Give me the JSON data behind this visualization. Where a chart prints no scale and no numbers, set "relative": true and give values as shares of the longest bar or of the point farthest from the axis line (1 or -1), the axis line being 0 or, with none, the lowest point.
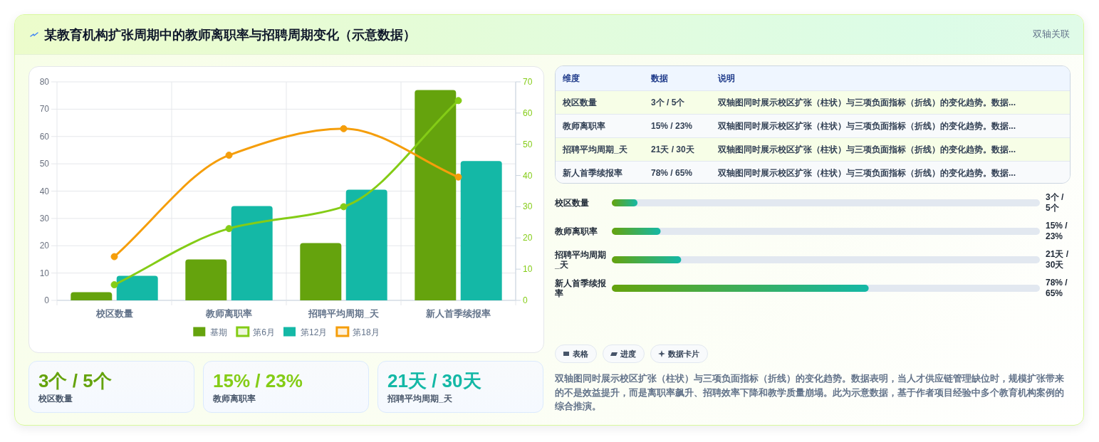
{
  "chart_data": [
    {
      "type": "bar",
      "title": "某教育机构扩张周期中的教师离职率与招聘周期变化（示意数据）",
      "annotations": [
        "双轴关联"
      ],
      "categories": [
        "校区数量",
        "教师离职率",
        "招聘平均周期_天",
        "新人首季续报率"
      ],
      "series": [
        {
          "name": "基期",
          "type": "bar",
          "color": "#65a30d",
          "values": [
            3,
            15,
            21,
            77
          ]
        },
        {
          "name": "第6月",
          "type": "line",
          "axis": "y2",
          "color": "#84cc16",
          "values": [
            5,
            23,
            30,
            64
          ]
        },
        {
          "name": "第12月",
          "type": "bar",
          "color": "#14b8a6",
          "values": [
            9,
            34.5,
            40.5,
            51
          ]
        },
        {
          "name": "第18月",
          "type": "line",
          "axis": "y2",
          "color": "#f59e0b",
          "values": [
            14,
            46.5,
            55,
            39.5
          ]
        }
      ],
      "ylim": [
        0,
        80
      ],
      "yticks": [
        0,
        10,
        20,
        30,
        40,
        50,
        60,
        70,
        80
      ],
      "y2lim": [
        0,
        70
      ],
      "y2ticks": [
        0,
        10,
        20,
        30,
        40,
        50,
        60,
        70
      ],
      "grid": true,
      "legend": "bottom",
      "marker": "circle"
    },
    {
      "type": "other",
      "categories": [
        "校区数量",
        "教师离职率",
        "招聘平均周期_天"
      ],
      "value_labels": [
        "3个 / 5个",
        "15% / 23%",
        "21天 / 30天"
      ]
    },
    {
      "type": "other",
      "annotations": [
        "维度",
        "数据",
        "说明",
        "校区数量",
        "3个 / 5个",
        "双轴图同时展示校区扩张（柱状）与三项负面指标（折线）的变化趋势。数据...",
        "教师离职率",
        "15% / 23%",
        "双轴图同时展示校区扩张（柱状）与三项负面指标（折线）的变化趋势。数据...",
        "招聘平均周期_天",
        "21天 / 30天",
        "双轴图同时展示校区扩张（柱状）与三项负面指标（折线）的变化趋势。数据...",
        "新人首季续报率",
        "78% / 65%",
        "双轴图同时展示校区扩张（柱状）与三项负面指标（折线）的变化趋势。数据..."
      ]
    },
    {
      "type": "bar",
      "orientation": "horizontal",
      "relative": true,
      "categories": [
        "校区数量",
        "教师离职率",
        "招聘平均周期_天",
        "新人首季续报率"
      ],
      "values": [
        0.1,
        0.19,
        0.27,
        1
      ],
      "annotations": [
        "3个 / 5个",
        "15% / 23%",
        "21天 / 30天",
        "78% / 65%"
      ],
      "color": "#65a30d"
    },
    {
      "type": "other",
      "annotations": [
        "表格",
        "进度",
        "数据卡片",
        "双轴图同时展示校区扩张（柱状）与三项负面指标（折线）的变化趋势。数据表明，当人才供应链管理缺位时，规模扩张带来的不是效益提升，而是离职率飙升、招聘效率下降和教学质量崩塌。此为示意数据，基于作者项目经验中多个教育机构案例的综合推演。"
      ]
    }
  ]
}
